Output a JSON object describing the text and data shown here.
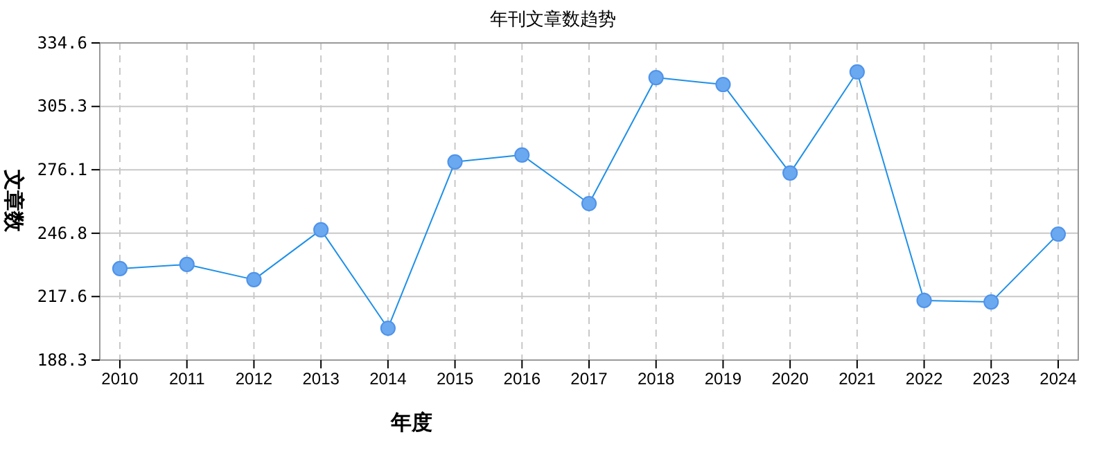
{
  "chart_data": {
    "type": "line",
    "title": "年刊文章数趋势",
    "xlabel": "年度",
    "ylabel": "文章数",
    "categories": [
      "2010",
      "2011",
      "2012",
      "2013",
      "2014",
      "2015",
      "2016",
      "2017",
      "2018",
      "2019",
      "2020",
      "2021",
      "2022",
      "2023",
      "2024"
    ],
    "series": [
      {
        "color": "#1e90e8",
        "values": [
          230.5,
          232.4,
          225.4,
          248.4,
          203.0,
          279.7,
          282.9,
          260.5,
          318.6,
          315.4,
          274.6,
          321.2,
          215.8,
          215.1,
          246.4
        ]
      }
    ],
    "ylim": [
      188.3,
      334.6
    ],
    "yticks": [
      188.3,
      217.6,
      246.8,
      276.1,
      305.3,
      334.6
    ],
    "grid": true,
    "marker": "circle",
    "line_style": "solid"
  }
}
